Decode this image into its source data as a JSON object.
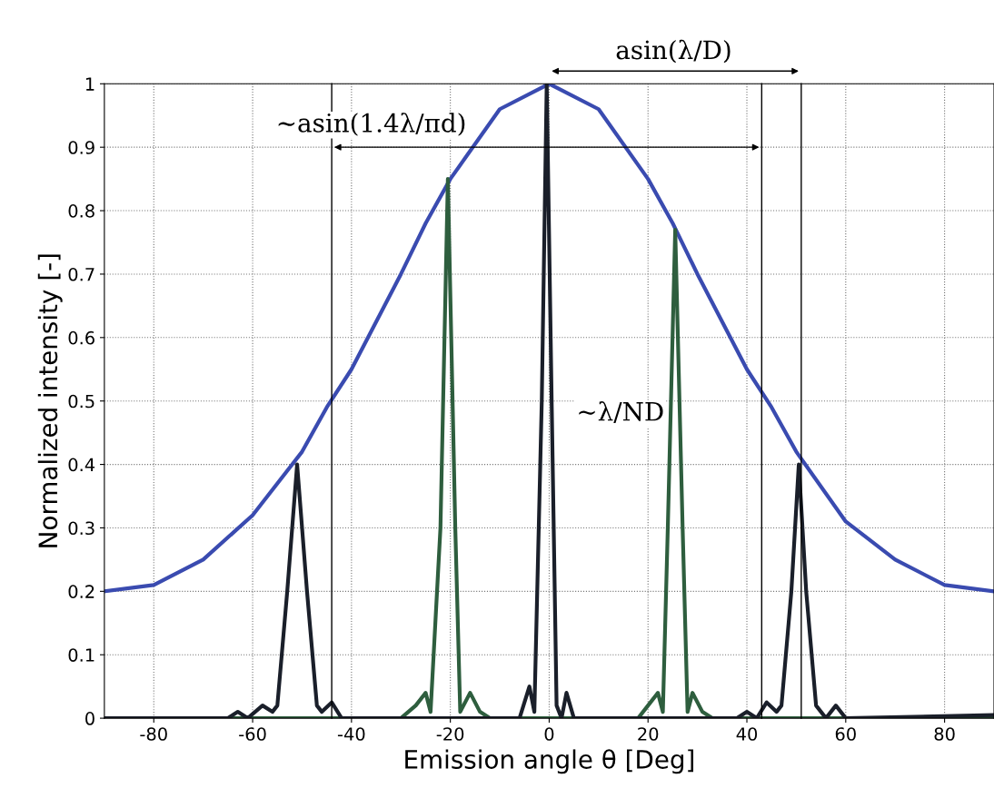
{
  "chart_data": {
    "type": "line",
    "xlabel": "Emission angle θ [Deg]",
    "ylabel": "Normalized intensity [-]",
    "xlim": [
      -90,
      90
    ],
    "ylim": [
      0,
      1
    ],
    "xticks": [
      -80,
      -60,
      -40,
      -20,
      0,
      20,
      40,
      60,
      80
    ],
    "yticks": [
      0,
      0.1,
      0.2,
      0.3,
      0.4,
      0.5,
      0.6,
      0.7,
      0.8,
      0.9,
      1
    ],
    "grid": true,
    "legend": false,
    "series": [
      {
        "color": "#3a4bb0",
        "x": [
          -90,
          -80,
          -70,
          -60,
          -50,
          -45,
          -40,
          -30,
          -25,
          -20,
          -10,
          0,
          10,
          20,
          25,
          30,
          40,
          45,
          50,
          60,
          70,
          80,
          90
        ],
        "values": [
          0.2,
          0.21,
          0.25,
          0.32,
          0.42,
          0.49,
          0.55,
          0.7,
          0.78,
          0.85,
          0.96,
          1.0,
          0.96,
          0.85,
          0.78,
          0.7,
          0.55,
          0.49,
          0.42,
          0.31,
          0.25,
          0.21,
          0.2
        ]
      },
      {
        "color": "#2e5e3e",
        "x": [
          -90,
          -30,
          -27,
          -25,
          -24,
          -22,
          -20.5,
          -19,
          -18,
          -16,
          -14,
          -12,
          18,
          20,
          22,
          23,
          24,
          25.5,
          27,
          28,
          29,
          31,
          33,
          90
        ],
        "values": [
          0,
          0,
          0.02,
          0.04,
          0.01,
          0.3,
          0.85,
          0.3,
          0.01,
          0.04,
          0.01,
          0,
          0,
          0.02,
          0.04,
          0.01,
          0.3,
          0.77,
          0.3,
          0.01,
          0.04,
          0.01,
          0,
          0
        ]
      },
      {
        "color": "#1a1f2a",
        "x": [
          -90,
          -65,
          -63,
          -61,
          -58,
          -56,
          -55,
          -53,
          -51,
          -49,
          -47,
          -46,
          -44,
          -42,
          -30,
          -6,
          -4,
          -3,
          -1.5,
          -0.5,
          0.5,
          1.5,
          2.5,
          3.5,
          5,
          38,
          40,
          42,
          44,
          46,
          47,
          49,
          50.5,
          52,
          54,
          56,
          58,
          60,
          90
        ],
        "values": [
          0,
          0,
          0.01,
          0,
          0.02,
          0.01,
          0.02,
          0.2,
          0.4,
          0.2,
          0.02,
          0.01,
          0.025,
          0,
          0,
          0,
          0.05,
          0.01,
          0.5,
          1.0,
          0.5,
          0.02,
          0,
          0.04,
          0,
          0,
          0.01,
          0,
          0.025,
          0.01,
          0.02,
          0.2,
          0.4,
          0.2,
          0.02,
          0,
          0.02,
          0,
          0.005
        ]
      }
    ],
    "ref_lines": [
      {
        "axis": "x",
        "value": -44,
        "color": "#000000"
      },
      {
        "axis": "x",
        "value": 43,
        "color": "#000000"
      },
      {
        "axis": "x",
        "value": 51,
        "color": "#000000"
      }
    ],
    "annotations": [
      "asin(λ/D)",
      "~asin(1.4λ/πd)",
      "~λ/ND"
    ]
  }
}
